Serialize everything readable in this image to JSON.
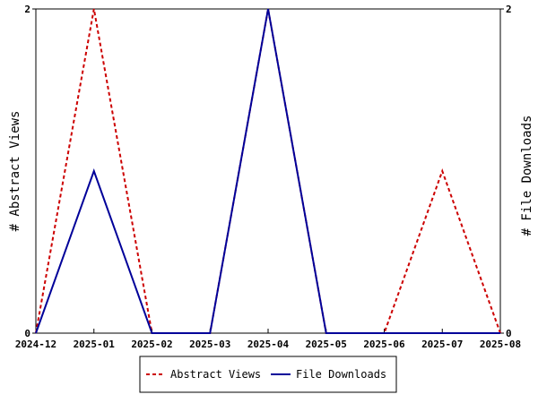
{
  "chart_data": {
    "type": "line",
    "title": "",
    "x": [
      "2024-12",
      "2025-01",
      "2025-02",
      "2025-03",
      "2025-04",
      "2025-05",
      "2025-06",
      "2025-07",
      "2025-08"
    ],
    "series": [
      {
        "name": "Abstract Views",
        "axis": "left",
        "color": "#cc0000",
        "dash": "dashed",
        "values": [
          0,
          2,
          0,
          0,
          2,
          0,
          0,
          1,
          0
        ]
      },
      {
        "name": "File Downloads",
        "axis": "right",
        "color": "#000099",
        "dash": "solid",
        "values": [
          0,
          1,
          0,
          0,
          2,
          0,
          0,
          0,
          0
        ]
      }
    ],
    "ylabel_left": "# Abstract Views",
    "ylabel_right": "# File Downloads",
    "ylim_left": [
      0,
      2
    ],
    "ylim_right": [
      0,
      2
    ],
    "yticks_left": [
      "0",
      "2"
    ],
    "yticks_right": [
      "0",
      "2"
    ],
    "grid": false,
    "legend_position": "bottom-center"
  }
}
